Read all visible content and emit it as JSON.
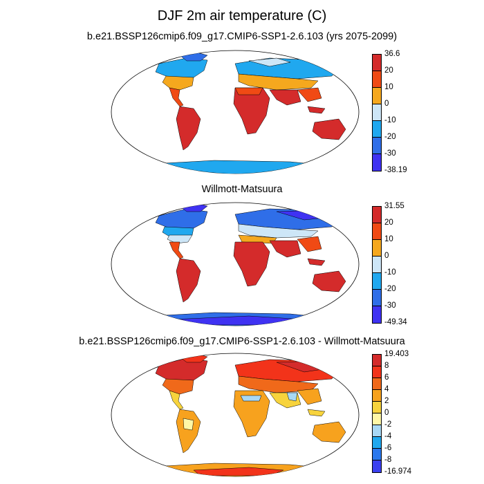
{
  "figure": {
    "title": "DJF 2m air temperature (C)"
  },
  "panels": [
    {
      "label": "b.e21.BSSP126cmip6.f09_g17.CMIP6-SSP1-2.6.103 (yrs 2075-2099)",
      "colorbar": {
        "labels": [
          "36.6",
          "20",
          "10",
          "0",
          "-10",
          "-20",
          "-30",
          "-38.19"
        ],
        "colors": [
          "#d42b2b",
          "#f04a14",
          "#f5a81e",
          "#cde6f7",
          "#20a8ef",
          "#2f6ee8",
          "#3f32f2"
        ]
      }
    },
    {
      "label": "Willmott-Matsuura",
      "colorbar": {
        "labels": [
          "31.55",
          "20",
          "10",
          "0",
          "-10",
          "-20",
          "-30",
          "-49.34"
        ],
        "colors": [
          "#d42b2b",
          "#f04a14",
          "#f5a81e",
          "#cde6f7",
          "#20a8ef",
          "#2f6ee8",
          "#3f32f2"
        ]
      }
    },
    {
      "label": "b.e21.BSSP126cmip6.f09_g17.CMIP6-SSP1-2.6.103 - Willmott-Matsuura",
      "colorbar": {
        "labels": [
          "19.403",
          "8",
          "6",
          "4",
          "2",
          "0",
          "-2",
          "-4",
          "-6",
          "-8",
          "-16.974"
        ],
        "colors": [
          "#d42b2b",
          "#f2331a",
          "#f0691a",
          "#f7a21e",
          "#f7d33c",
          "#fff7a6",
          "#a8d8f5",
          "#20a8ef",
          "#2a78ee",
          "#3b40f0"
        ]
      }
    }
  ]
}
